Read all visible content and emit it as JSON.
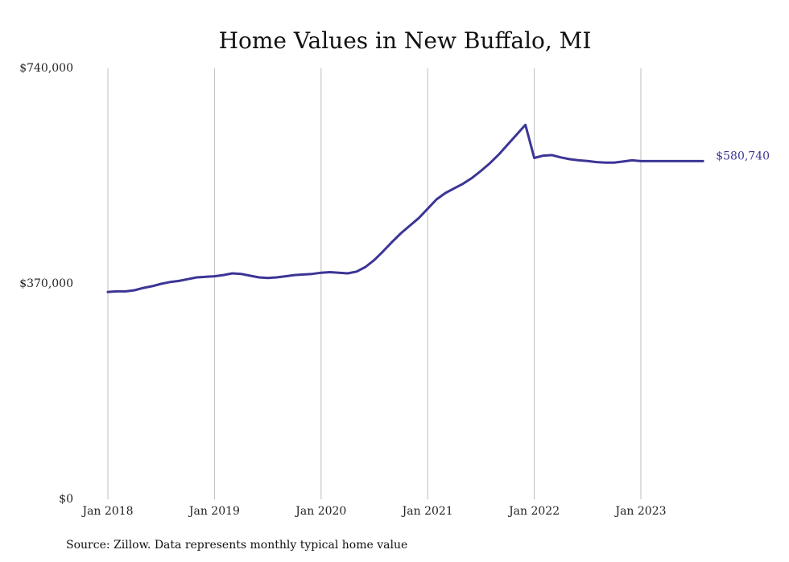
{
  "chart_data": {
    "type": "line",
    "title": "Home Values in New Buffalo, MI",
    "source": "Source: Zillow. Data represents monthly typical home value",
    "x_tick_labels": [
      "Jan 2018",
      "Jan 2019",
      "Jan 2020",
      "Jan 2021",
      "Jan 2022",
      "Jan 2023"
    ],
    "y_tick_labels": [
      "$0",
      "$370,000",
      "$740,000"
    ],
    "y_ticks": [
      0,
      370000,
      740000
    ],
    "ylim": [
      0,
      740000
    ],
    "xlim": [
      "2018-01",
      "2023-08"
    ],
    "grid": "vertical",
    "color": "#3b3596",
    "end_label": "$580,740",
    "series": [
      {
        "x": [
          "2018-01",
          "2018-02",
          "2018-03",
          "2018-04",
          "2018-05",
          "2018-06",
          "2018-07",
          "2018-08",
          "2018-09",
          "2018-10",
          "2018-11",
          "2018-12",
          "2019-01",
          "2019-02",
          "2019-03",
          "2019-04",
          "2019-05",
          "2019-06",
          "2019-07",
          "2019-08",
          "2019-09",
          "2019-10",
          "2019-11",
          "2019-12",
          "2020-01",
          "2020-02",
          "2020-03",
          "2020-04",
          "2020-05",
          "2020-06",
          "2020-07",
          "2020-08",
          "2020-09",
          "2020-10",
          "2020-11",
          "2020-12",
          "2021-01",
          "2021-02",
          "2021-03",
          "2021-04",
          "2021-05",
          "2021-06",
          "2021-07",
          "2021-08",
          "2021-09",
          "2021-10",
          "2021-11",
          "2021-12",
          "2022-01",
          "2022-02",
          "2022-03",
          "2022-04",
          "2022-05",
          "2022-06",
          "2022-07",
          "2022-08",
          "2022-09",
          "2022-10",
          "2022-11",
          "2022-12",
          "2023-01",
          "2023-02",
          "2023-03",
          "2023-04",
          "2023-05",
          "2023-06",
          "2023-07",
          "2023-08"
        ],
        "values": [
          356000,
          357000,
          357000,
          359000,
          363000,
          366000,
          370000,
          373000,
          375000,
          378000,
          381000,
          382000,
          383000,
          385000,
          388000,
          387000,
          384000,
          381000,
          380000,
          381000,
          383000,
          385000,
          386000,
          387000,
          389000,
          390000,
          389000,
          388000,
          391000,
          399000,
          411000,
          426000,
          442000,
          457000,
          470000,
          483000,
          499000,
          515000,
          526000,
          534000,
          542000,
          552000,
          564000,
          577000,
          592000,
          609000,
          626000,
          643000,
          586000,
          590000,
          591000,
          587000,
          584000,
          582000,
          581000,
          579000,
          578000,
          578000,
          580000,
          582000,
          580740,
          580740,
          580740,
          580740,
          580740,
          580740,
          580740,
          580740
        ]
      }
    ]
  }
}
